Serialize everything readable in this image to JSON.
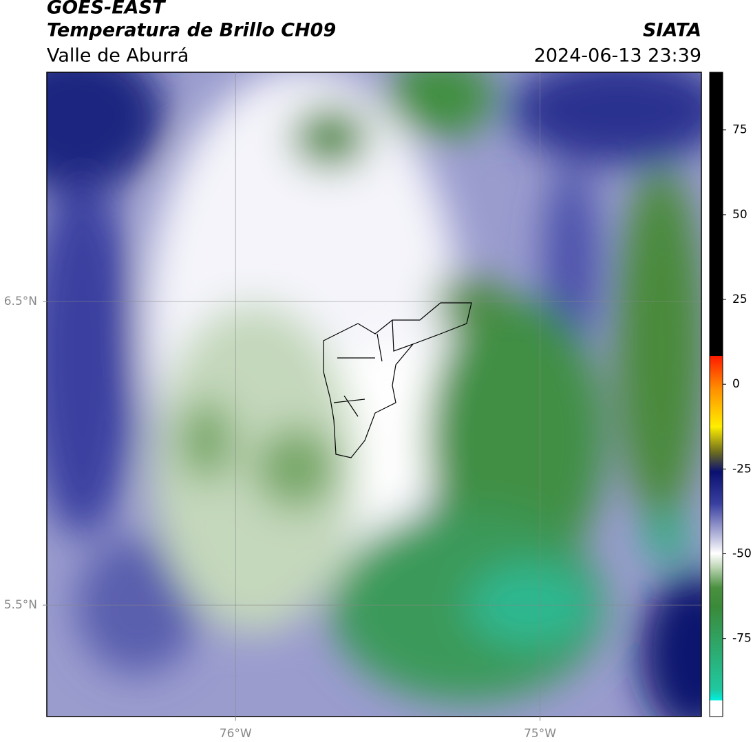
{
  "header": {
    "title": "GOES-EAST",
    "subtitle": "Temperatura de Brillo CH09",
    "region": "Valle de Aburrá",
    "source": "SIATA",
    "timestamp": "2024-06-13 23:39"
  },
  "map": {
    "xlim": [
      -76.62,
      -74.47
    ],
    "ylim": [
      5.133,
      7.255
    ],
    "xticks": [
      {
        "value": -76,
        "label": "76°W"
      },
      {
        "value": -75,
        "label": "75°W"
      }
    ],
    "yticks": [
      {
        "value": 6.5,
        "label": "6.5°N"
      },
      {
        "value": 5.5,
        "label": "5.5°N"
      }
    ],
    "grid": true
  },
  "colorbar": {
    "lim": [
      -98,
      92
    ],
    "ticks": [
      75,
      50,
      25,
      0,
      -25,
      -50,
      -75
    ]
  }
}
